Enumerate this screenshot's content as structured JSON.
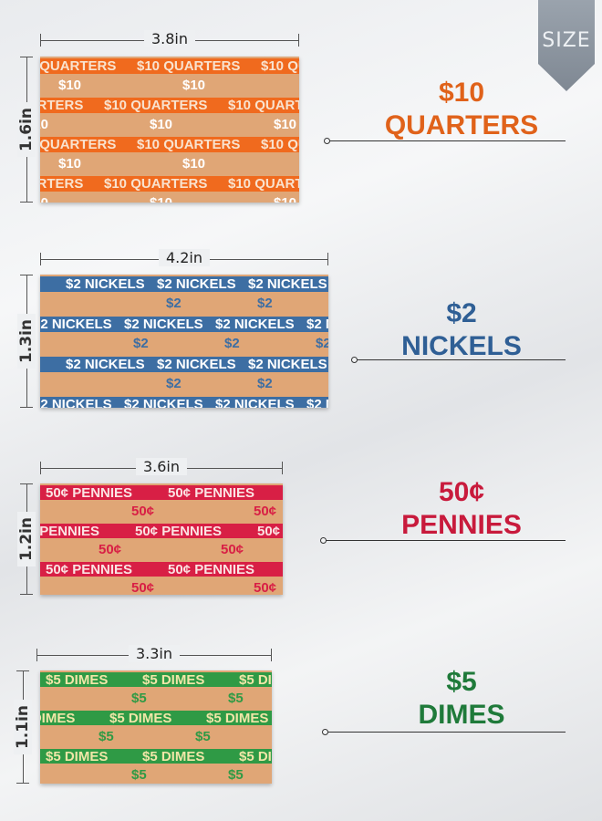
{
  "size_tag": "SIZE",
  "rolls": [
    {
      "width_label": "3.8in",
      "height_label": "1.6in",
      "stripe_color": "#f06a1e",
      "text_on_stripe": "#f9e3cf",
      "text_on_paper": "#ffffff",
      "denomination": "$10",
      "coin_text": "$10 QUARTERS",
      "title_line1": "$10",
      "title_line2": "QUARTERS",
      "title_color": "#e0621a"
    },
    {
      "width_label": "4.2in",
      "height_label": "1.3in",
      "stripe_color": "#3d6ea3",
      "text_on_stripe": "#ffffff",
      "text_on_paper": "#3d6ea3",
      "denomination": "$2",
      "coin_text": "$2 NICKELS",
      "title_line1": "$2",
      "title_line2": "NICKELS",
      "title_color": "#2f5f95"
    },
    {
      "width_label": "3.6in",
      "height_label": "1.2in",
      "stripe_color": "#d81f45",
      "text_on_stripe": "#fbe3e3",
      "text_on_paper": "#d81f45",
      "denomination": "50¢",
      "coin_text": "50¢ PENNIES",
      "title_line1": "50¢",
      "title_line2": "PENNIES",
      "title_color": "#c81a3c"
    },
    {
      "width_label": "3.3in",
      "height_label": "1.1in",
      "stripe_color": "#2f9a45",
      "text_on_stripe": "#f1e6a8",
      "text_on_paper": "#2f9a45",
      "denomination": "$5",
      "coin_text": "$5 DIMES",
      "title_line1": "$5",
      "title_line2": "DIMES",
      "title_color": "#1f7a3a"
    }
  ]
}
